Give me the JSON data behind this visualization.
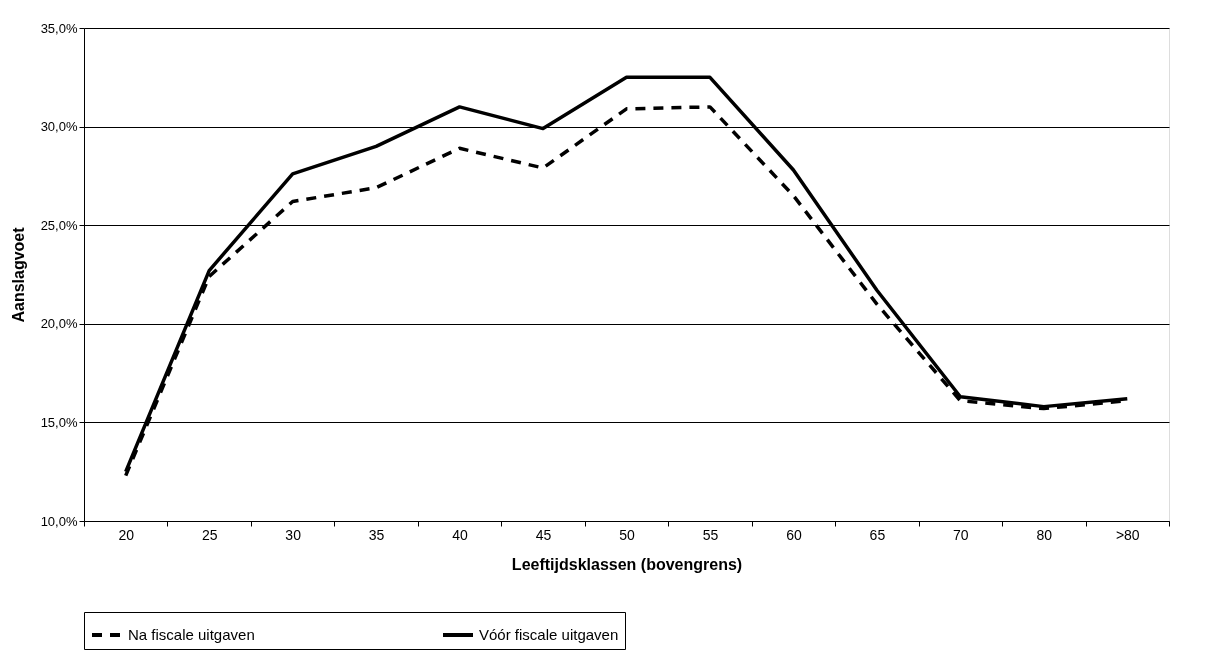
{
  "chart_data": {
    "type": "line",
    "xlabel": "Leeftijdsklassen (bovengrens)",
    "ylabel": "Aanslagvoet",
    "categories": [
      "20",
      "25",
      "30",
      "35",
      "40",
      "45",
      "50",
      "55",
      "60",
      "65",
      "70",
      "80",
      ">80"
    ],
    "series": [
      {
        "name": "Na fiscale uitgaven",
        "color": "#000000",
        "line_style": "dashed",
        "values": [
          12.3,
          22.4,
          26.2,
          26.9,
          28.9,
          27.9,
          30.9,
          31.0,
          26.5,
          21.0,
          16.1,
          15.7,
          16.1
        ]
      },
      {
        "name": "Vóór fiscale uitgaven",
        "color": "#000000",
        "line_style": "solid",
        "values": [
          12.5,
          22.7,
          27.6,
          29.0,
          31.0,
          29.9,
          32.5,
          32.5,
          27.8,
          21.7,
          16.3,
          15.8,
          16.2
        ]
      }
    ],
    "ylim": [
      10,
      35
    ],
    "yticks": [
      {
        "value": 10,
        "label": "10,0%"
      },
      {
        "value": 15,
        "label": "15,0%"
      },
      {
        "value": 20,
        "label": "20,0%"
      },
      {
        "value": 25,
        "label": "25,0%"
      },
      {
        "value": 30,
        "label": "30,0%"
      },
      {
        "value": 35,
        "label": "35,0%"
      }
    ],
    "grid": "y",
    "legend": "bottom",
    "marker": "none"
  }
}
